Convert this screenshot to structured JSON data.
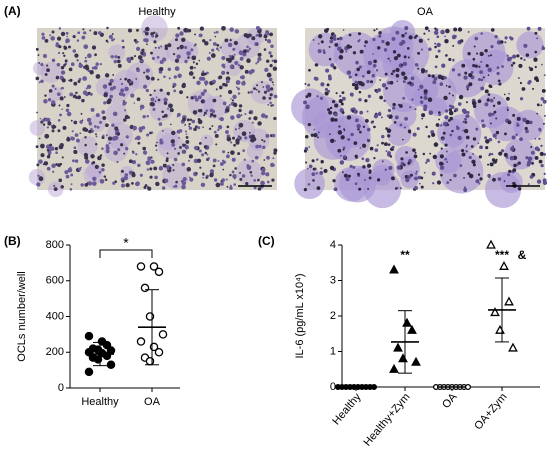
{
  "panel_a": {
    "label": "(A)",
    "images": [
      {
        "title": "Healthy"
      },
      {
        "title": "OA"
      }
    ]
  },
  "chart_data": [
    {
      "type": "dotplot",
      "label": "(B)",
      "ylabel": "OCLs number/well",
      "categories": [
        "Healthy",
        "OA"
      ],
      "markers": [
        "filled-circle",
        "open-circle"
      ],
      "values": [
        [
          290,
          260,
          240,
          220,
          215,
          210,
          200,
          195,
          180,
          170,
          160,
          130,
          90
        ],
        [
          680,
          680,
          650,
          560,
          400,
          300,
          260,
          230,
          200,
          170,
          150
        ]
      ],
      "means": [
        190,
        340
      ],
      "errors": [
        65,
        210
      ],
      "ylim": [
        0,
        800
      ],
      "yticks": [
        0,
        200,
        400,
        600,
        800
      ],
      "annotations": [
        {
          "text": "*",
          "between": [
            0,
            1
          ]
        }
      ]
    },
    {
      "type": "dotplot",
      "label": "(C)",
      "ylabel": "IL-6 (pg/mL x10⁴)",
      "categories": [
        "Healthy",
        "Healthy+Zym",
        "OA",
        "OA+Zym"
      ],
      "markers": [
        "filled-circle",
        "filled-triangle",
        "open-circle",
        "open-triangle"
      ],
      "values": [
        [
          0,
          0,
          0,
          0,
          0,
          0,
          0,
          0,
          0,
          0
        ],
        [
          3.3,
          1.8,
          1.6,
          1.1,
          0.8,
          0.7,
          0.5
        ],
        [
          0,
          0,
          0,
          0,
          0,
          0,
          0,
          0,
          0
        ],
        [
          4.0,
          3.4,
          2.4,
          2.1,
          1.6,
          1.1
        ]
      ],
      "means": [
        0,
        1.27,
        0,
        2.17
      ],
      "errors": [
        0,
        0.88,
        0,
        0.9
      ],
      "ylim": [
        0,
        4
      ],
      "yticks": [
        0,
        1,
        2,
        3,
        4
      ],
      "annotations": [
        {
          "text": "**",
          "category": 1
        },
        {
          "text": "***",
          "category": 3
        },
        {
          "text": "&",
          "category": 3,
          "offset": 1
        }
      ]
    }
  ]
}
